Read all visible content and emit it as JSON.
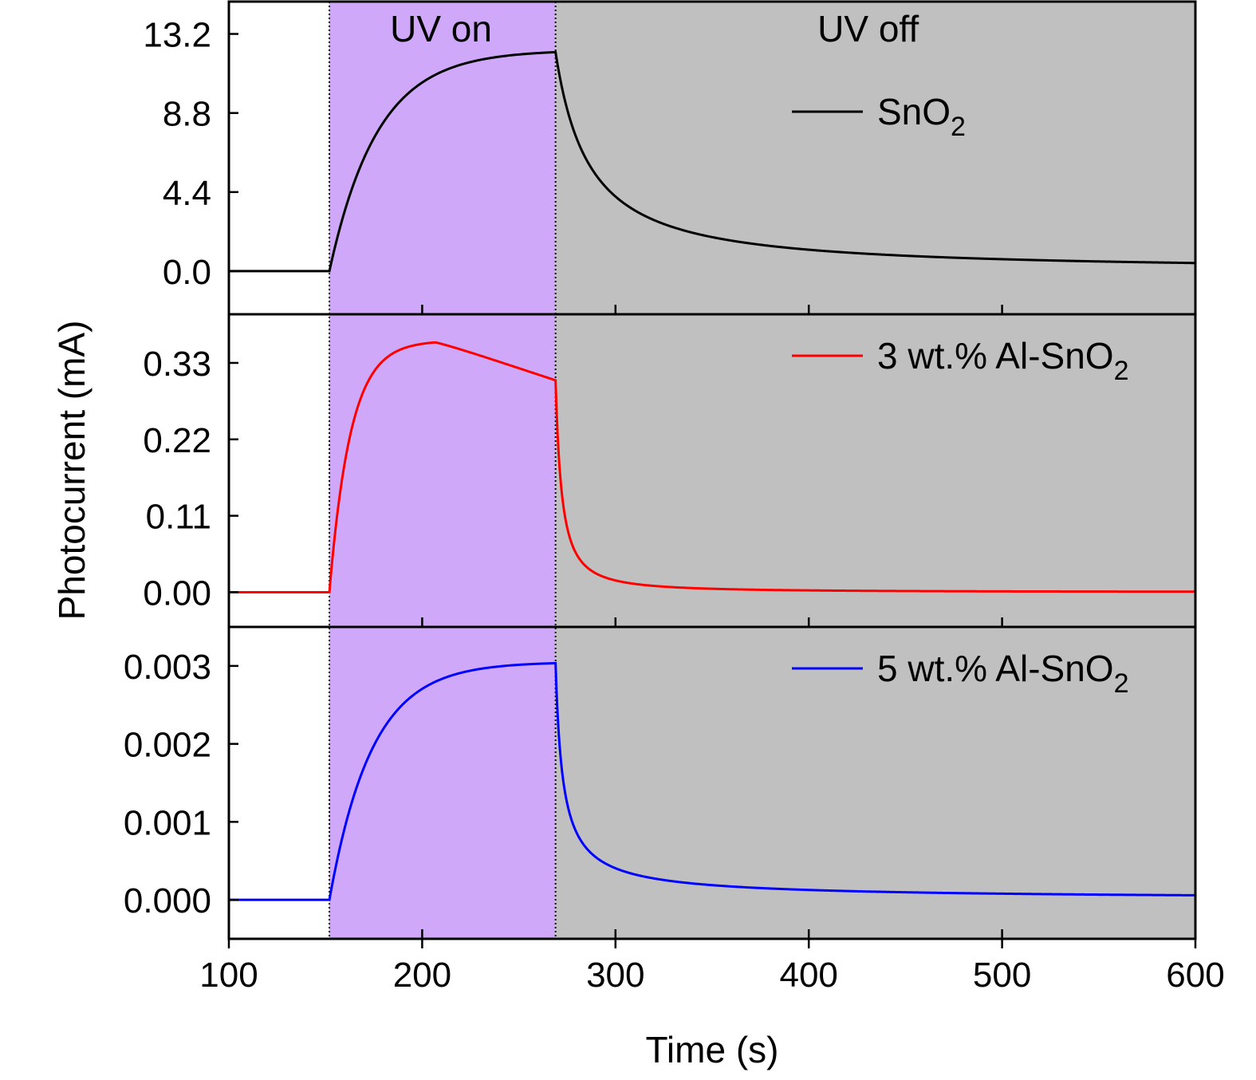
{
  "colors": {
    "uv_on_fill": "#d0a8fa",
    "uv_off_fill": "#c0c0c0",
    "snO2": "#000000",
    "al3": "#ff0000",
    "al5": "#0000ff",
    "frame": "#000000"
  },
  "chart_data": {
    "type": "line",
    "xlabel": "Time (s)",
    "ylabel": "Photocurrent (mA)",
    "xlim": [
      100,
      600
    ],
    "x_ticks": [
      100,
      200,
      300,
      400,
      500,
      600
    ],
    "x_tick_labels": [
      "100",
      "200",
      "300",
      "400",
      "500",
      "600"
    ],
    "regions": [
      {
        "label": "UV on",
        "x_start": 152,
        "x_end": 269,
        "color": "#d0a8fa"
      },
      {
        "label": "UV off",
        "x_start": 269,
        "x_end": 600,
        "color": "#c0c0c0"
      }
    ],
    "panels": [
      {
        "legend_main": "SnO",
        "legend_sub": "2",
        "color": "#000000",
        "ylim": [
          -2.4,
          15.0
        ],
        "y_ticks": [
          0.0,
          4.4,
          8.8,
          13.2
        ],
        "y_tick_labels": [
          "0.0",
          "4.4",
          "8.8",
          "13.2"
        ],
        "model": {
          "t_on": 152,
          "t_off": 269,
          "rise_shape": "exp",
          "rise_tau": 25,
          "rise_scale": 12.3,
          "drift": 0,
          "decay_shape": "hyper",
          "decay_tau": 20,
          "decay_pow": 1.15,
          "decay_floor": 0
        }
      },
      {
        "legend_main": "3 wt.% Al-SnO",
        "legend_sub": "2",
        "color": "#ff0000",
        "ylim": [
          -0.05,
          0.4
        ],
        "y_ticks": [
          0.0,
          0.11,
          0.22,
          0.33
        ],
        "y_tick_labels": [
          "0.00",
          "0.11",
          "0.22",
          "0.33"
        ],
        "model": {
          "t_on": 152,
          "t_off": 269,
          "rise_shape": "peak",
          "rise_tau": 11,
          "rise_scale": 0.362,
          "drift": -0.00095,
          "decay_shape": "hyper",
          "decay_tau": 4.5,
          "decay_pow": 1.4,
          "decay_floor": 0
        }
      },
      {
        "legend_main": "5 wt.% Al-SnO",
        "legend_sub": "2",
        "color": "#0000ff",
        "ylim": [
          -0.0005,
          0.0035
        ],
        "y_ticks": [
          0.0,
          0.001,
          0.002,
          0.003
        ],
        "y_tick_labels": [
          "0.000",
          "0.001",
          "0.002",
          "0.003"
        ],
        "model": {
          "t_on": 152,
          "t_off": 269,
          "rise_shape": "exp",
          "rise_tau": 22,
          "rise_scale": 0.00305,
          "drift": 0,
          "decay_shape": "hyper",
          "decay_tau": 3.2,
          "decay_pow": 0.85,
          "decay_floor": 0
        }
      }
    ]
  }
}
